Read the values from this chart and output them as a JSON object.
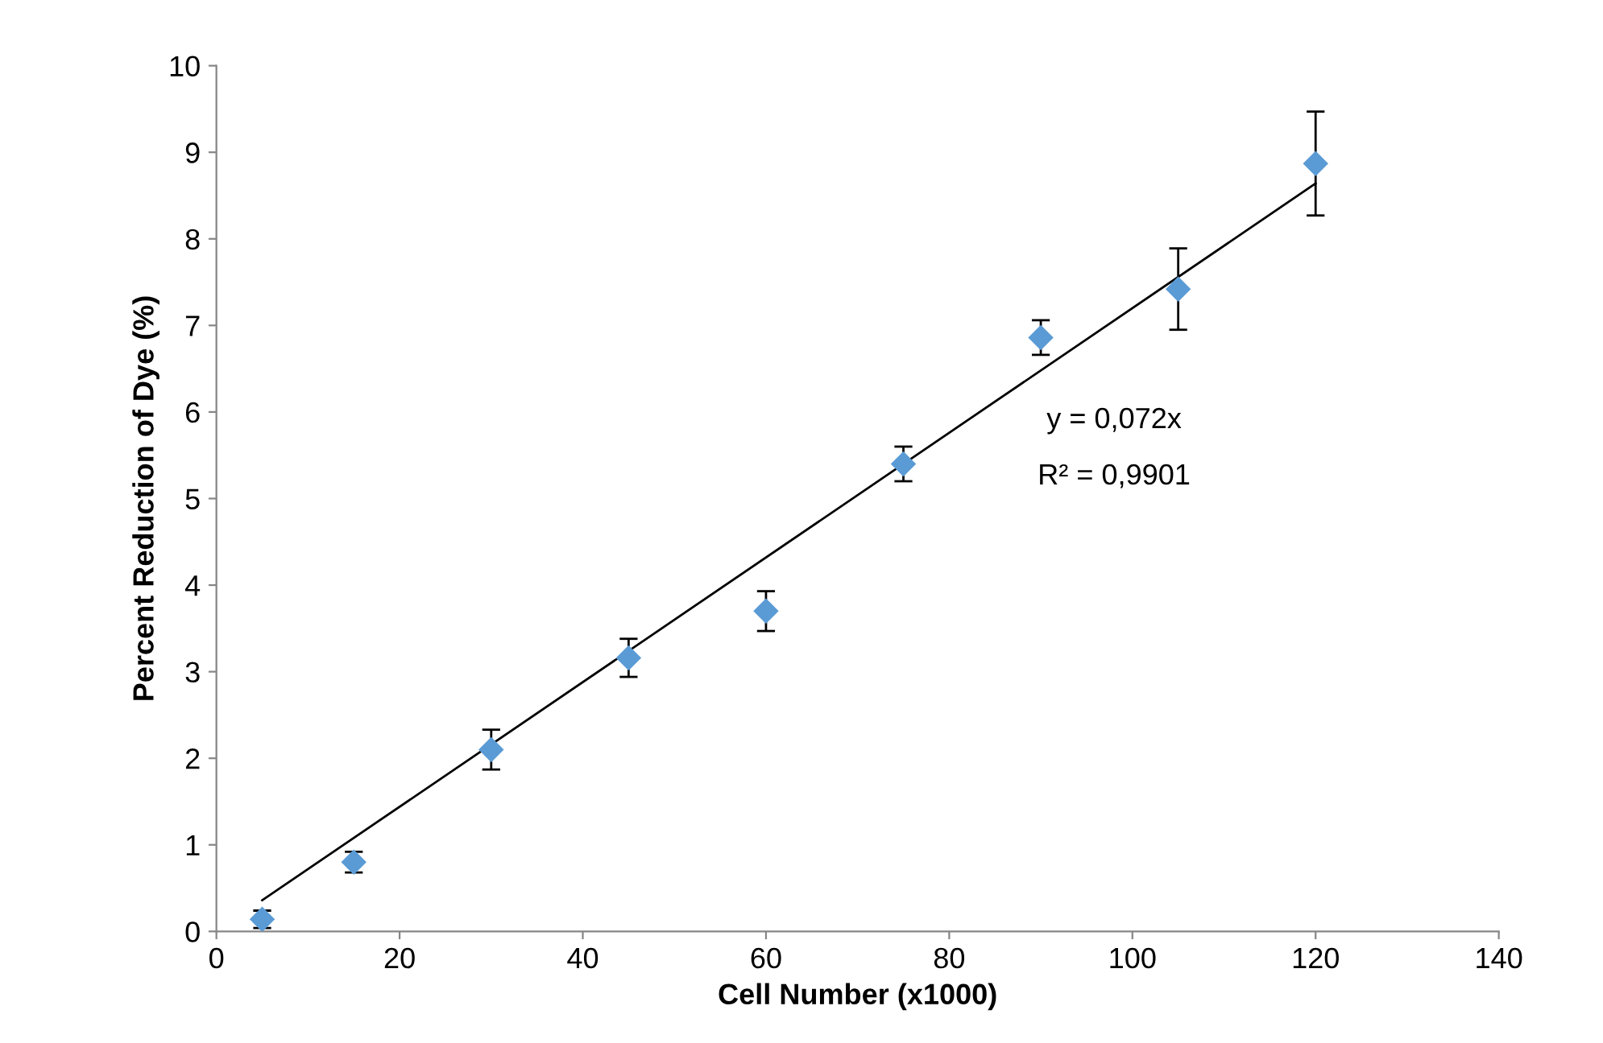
{
  "chart_data": {
    "type": "scatter",
    "xlabel": "Cell Number (x1000)",
    "ylabel": "Percent Reduction of Dye (%)",
    "xlim": [
      0,
      140
    ],
    "xticks": [
      0,
      20,
      40,
      60,
      80,
      100,
      120,
      140
    ],
    "ylim": [
      0,
      10
    ],
    "yticks": [
      0,
      1,
      2,
      3,
      4,
      5,
      6,
      7,
      8,
      9,
      10
    ],
    "grid": false,
    "legend": false,
    "series": [
      {
        "marker": "diamond",
        "color": "#5b9bd5",
        "x": [
          5,
          15,
          30,
          45,
          60,
          75,
          90,
          105,
          120
        ],
        "values": [
          0.14,
          0.8,
          2.1,
          3.16,
          3.7,
          5.4,
          6.86,
          7.42,
          8.87
        ],
        "errors": [
          0.1,
          0.12,
          0.23,
          0.22,
          0.23,
          0.2,
          0.2,
          0.47,
          0.6
        ]
      },
      {
        "type": "line",
        "color": "#000000",
        "x": [
          5,
          120
        ],
        "values": [
          0.36,
          8.64
        ]
      }
    ],
    "annotations": [
      "y = 0,072x",
      "R² = 0,9901"
    ]
  }
}
